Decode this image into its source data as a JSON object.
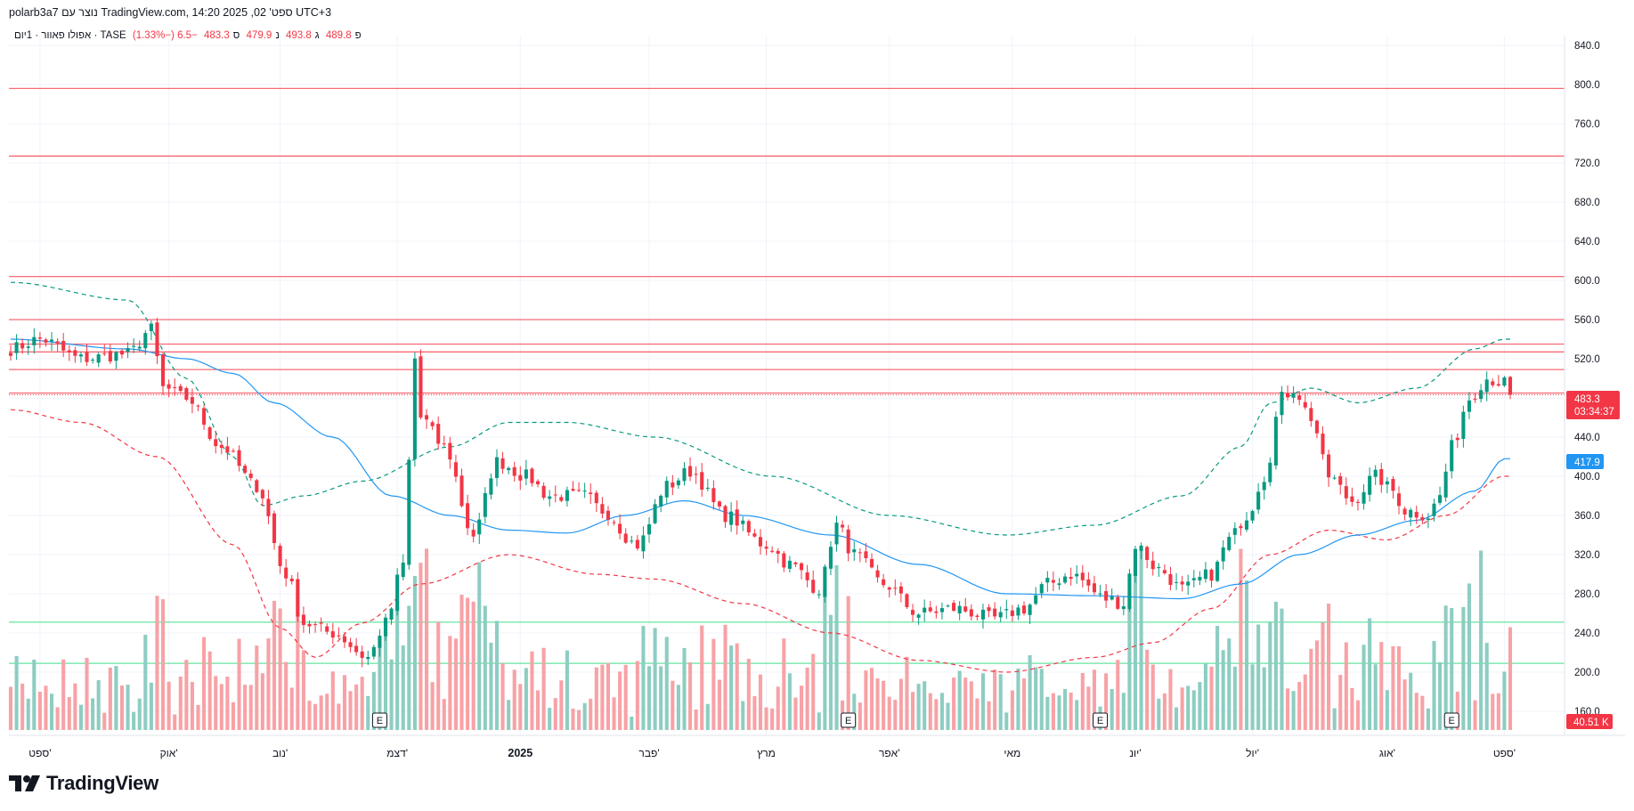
{
  "header": {
    "title": "polarb3a7 נוצר עם TradingView.com, 14:20 2025 ,02 'ספט UTC+3"
  },
  "legend": {
    "symbol": "אפולו פאוור · 1יום · TASE",
    "open_label": "פ",
    "open": "489.8",
    "high_label": "ג",
    "high": "493.8",
    "low_label": "נ",
    "low": "479.9",
    "close_label": "ס",
    "close": "483.3",
    "change": "−6.5 (−1.33%)"
  },
  "price_badge": {
    "value": "483.3",
    "countdown": "03:34:37",
    "color": "#f23645"
  },
  "ma_badge": {
    "value": "417.9",
    "color": "#2196f3"
  },
  "volume_badge": {
    "value": "40.51 K",
    "color": "#f23645"
  },
  "earnings_label": "E",
  "logo": {
    "text": "TradingView"
  },
  "colors": {
    "up": "#089981",
    "down": "#f23645",
    "vol_up": "#8dcdc2",
    "vol_down": "#f7a2a6",
    "ma": "#2196f3",
    "band_upper": "#089981",
    "band_lower": "#f23645",
    "resistance": "#f7525f",
    "support": "#4ce08f"
  },
  "chart_data": {
    "type": "candlestick",
    "symbol": "TASE",
    "interval": "1D",
    "ylim": [
      150,
      860
    ],
    "price_ticks": [
      840,
      800,
      760,
      720,
      680,
      640,
      600,
      560,
      520,
      480,
      440,
      400,
      360,
      320,
      280,
      240,
      200,
      160
    ],
    "price_tick_labels": [
      "840.0",
      "800.0",
      "760.0",
      "720.0",
      "680.0",
      "640.0",
      "600.0",
      "560.0",
      "520.0",
      "480.0",
      "440.0",
      "400.0",
      "360.0",
      "320.0",
      "280.0",
      "240.0",
      "200.0",
      "160.0"
    ],
    "time_labels": [
      {
        "label": "ספט'",
        "bar": 5
      },
      {
        "label": "אוק'",
        "bar": 27
      },
      {
        "label": "נוב'",
        "bar": 46
      },
      {
        "label": "דצמ'",
        "bar": 66
      },
      {
        "label": "2025",
        "bar": 87,
        "bold": true
      },
      {
        "label": "פבר'",
        "bar": 109
      },
      {
        "label": "מרץ",
        "bar": 129
      },
      {
        "label": "אפר'",
        "bar": 150
      },
      {
        "label": "מאי",
        "bar": 171
      },
      {
        "label": "יונ'",
        "bar": 192
      },
      {
        "label": "יול'",
        "bar": 212
      },
      {
        "label": "אוג'",
        "bar": 235
      },
      {
        "label": "ספט'",
        "bar": 255
      }
    ],
    "horizontal_lines": [
      {
        "price": 796,
        "kind": "resistance"
      },
      {
        "price": 727,
        "kind": "resistance"
      },
      {
        "price": 604,
        "kind": "resistance"
      },
      {
        "price": 560,
        "kind": "resistance"
      },
      {
        "price": 535,
        "kind": "resistance"
      },
      {
        "price": 527,
        "kind": "resistance"
      },
      {
        "price": 509,
        "kind": "resistance"
      },
      {
        "price": 485,
        "kind": "resistance"
      },
      {
        "price": 251,
        "kind": "support"
      },
      {
        "price": 209,
        "kind": "support"
      }
    ],
    "earnings_bars": [
      63,
      143,
      186,
      246
    ],
    "anchors": [
      [
        0,
        530
      ],
      [
        5,
        540
      ],
      [
        12,
        520
      ],
      [
        20,
        525
      ],
      [
        24,
        550
      ],
      [
        26,
        490
      ],
      [
        30,
        480
      ],
      [
        36,
        430
      ],
      [
        42,
        390
      ],
      [
        47,
        300
      ],
      [
        50,
        250
      ],
      [
        55,
        240
      ],
      [
        61,
        215
      ],
      [
        64,
        250
      ],
      [
        67,
        310
      ],
      [
        69,
        520
      ],
      [
        70,
        460
      ],
      [
        74,
        430
      ],
      [
        79,
        340
      ],
      [
        83,
        415
      ],
      [
        88,
        400
      ],
      [
        92,
        380
      ],
      [
        98,
        380
      ],
      [
        101,
        365
      ],
      [
        107,
        330
      ],
      [
        112,
        390
      ],
      [
        116,
        405
      ],
      [
        122,
        360
      ],
      [
        129,
        330
      ],
      [
        133,
        310
      ],
      [
        138,
        285
      ],
      [
        141,
        350
      ],
      [
        144,
        320
      ],
      [
        149,
        290
      ],
      [
        155,
        260
      ],
      [
        161,
        265
      ],
      [
        168,
        255
      ],
      [
        173,
        265
      ],
      [
        177,
        290
      ],
      [
        181,
        300
      ],
      [
        187,
        275
      ],
      [
        190,
        270
      ],
      [
        192,
        330
      ],
      [
        196,
        305
      ],
      [
        200,
        285
      ],
      [
        205,
        300
      ],
      [
        208,
        335
      ],
      [
        211,
        360
      ],
      [
        214,
        400
      ],
      [
        217,
        480
      ],
      [
        219,
        490
      ],
      [
        222,
        460
      ],
      [
        225,
        400
      ],
      [
        229,
        375
      ],
      [
        233,
        400
      ],
      [
        236,
        385
      ],
      [
        238,
        365
      ],
      [
        242,
        360
      ],
      [
        244,
        380
      ],
      [
        246,
        430
      ],
      [
        249,
        480
      ],
      [
        252,
        500
      ],
      [
        255,
        495
      ],
      [
        256,
        483.3
      ]
    ],
    "volume_max": 340000,
    "series": [
      {
        "name": "band_upper",
        "points": [
          [
            0,
            598
          ],
          [
            20,
            580
          ],
          [
            30,
            500
          ],
          [
            38,
            420
          ],
          [
            43,
            370
          ],
          [
            50,
            380
          ],
          [
            60,
            395
          ],
          [
            75,
            430
          ],
          [
            85,
            455
          ],
          [
            95,
            455
          ],
          [
            110,
            440
          ],
          [
            130,
            400
          ],
          [
            150,
            360
          ],
          [
            170,
            340
          ],
          [
            185,
            350
          ],
          [
            200,
            380
          ],
          [
            210,
            430
          ],
          [
            215,
            475
          ],
          [
            222,
            490
          ],
          [
            230,
            475
          ],
          [
            240,
            490
          ],
          [
            250,
            530
          ],
          [
            255,
            540
          ]
        ]
      },
      {
        "name": "band_lower",
        "points": [
          [
            0,
            468
          ],
          [
            12,
            455
          ],
          [
            25,
            420
          ],
          [
            38,
            330
          ],
          [
            46,
            245
          ],
          [
            52,
            215
          ],
          [
            60,
            250
          ],
          [
            70,
            290
          ],
          [
            85,
            320
          ],
          [
            100,
            300
          ],
          [
            110,
            295
          ],
          [
            125,
            270
          ],
          [
            140,
            240
          ],
          [
            155,
            212
          ],
          [
            170,
            200
          ],
          [
            185,
            215
          ],
          [
            195,
            230
          ],
          [
            205,
            265
          ],
          [
            215,
            320
          ],
          [
            225,
            345
          ],
          [
            235,
            335
          ],
          [
            245,
            360
          ],
          [
            255,
            400
          ]
        ]
      },
      {
        "name": "ma",
        "points": [
          [
            0,
            540
          ],
          [
            20,
            530
          ],
          [
            30,
            520
          ],
          [
            38,
            505
          ],
          [
            45,
            475
          ],
          [
            55,
            440
          ],
          [
            65,
            380
          ],
          [
            75,
            360
          ],
          [
            85,
            345
          ],
          [
            95,
            342
          ],
          [
            105,
            360
          ],
          [
            115,
            375
          ],
          [
            125,
            360
          ],
          [
            140,
            340
          ],
          [
            155,
            310
          ],
          [
            170,
            280
          ],
          [
            185,
            278
          ],
          [
            200,
            275
          ],
          [
            210,
            290
          ],
          [
            220,
            320
          ],
          [
            230,
            340
          ],
          [
            240,
            355
          ],
          [
            250,
            385
          ],
          [
            255,
            417.9
          ]
        ]
      }
    ]
  }
}
